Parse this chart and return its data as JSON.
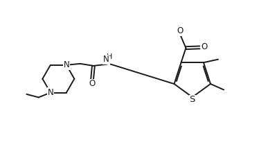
{
  "bg_color": "#ffffff",
  "line_color": "#1a1a1a",
  "line_width": 1.4,
  "font_size": 8.5,
  "fig_width": 3.87,
  "fig_height": 2.12,
  "dpi": 100,
  "xlim": [
    0,
    10
  ],
  "ylim": [
    0,
    5.5
  ]
}
